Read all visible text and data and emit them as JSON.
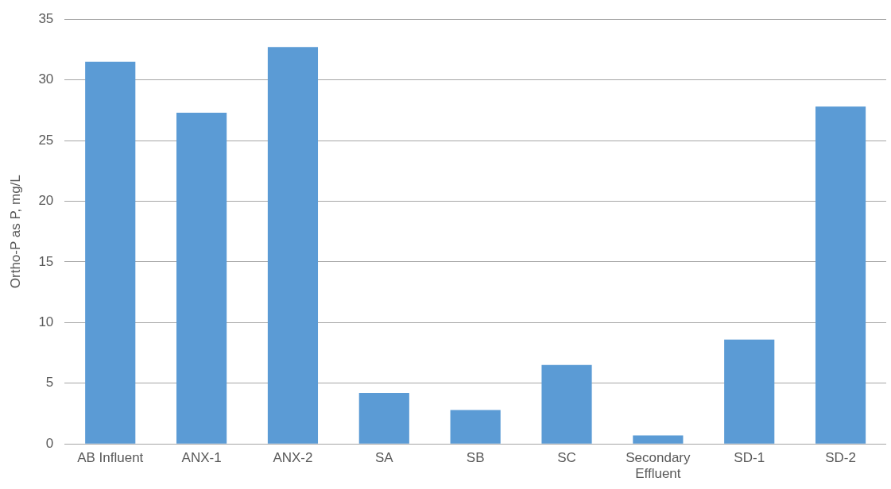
{
  "chart_data": {
    "type": "bar",
    "ylabel": "Ortho-P as P, mg/L",
    "categories": [
      "AB Influent",
      "ANX-1",
      "ANX-2",
      "SA",
      "SB",
      "SC",
      "Secondary Effluent",
      "SD-1",
      "SD-2"
    ],
    "values": [
      31.5,
      27.3,
      32.7,
      4.2,
      2.8,
      6.5,
      0.7,
      8.6,
      27.8
    ],
    "color": "#5b9bd5",
    "ylim": [
      0,
      35
    ],
    "yticks": [
      0,
      5,
      10,
      15,
      20,
      25,
      30,
      35
    ],
    "grid": "y",
    "legend": false
  }
}
